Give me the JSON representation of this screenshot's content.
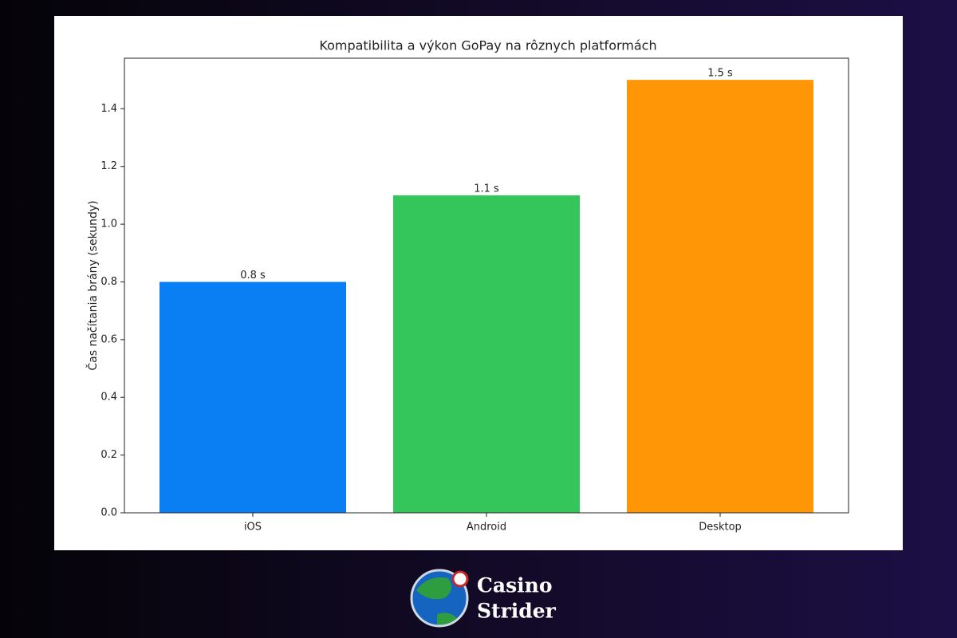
{
  "chart_data": {
    "type": "bar",
    "title": "Kompatibilita a výkon GoPay na rôznych platformách",
    "y_label": "Čas načítania brány (sekundy)",
    "categories": [
      "iOS",
      "Android",
      "Desktop"
    ],
    "values": [
      0.8,
      1.1,
      1.5
    ],
    "value_labels": [
      "0.8 s",
      "1.1 s",
      "1.5 s"
    ],
    "colors": [
      "#0a7ef3",
      "#34c65a",
      "#ff9606"
    ],
    "ylim": [
      0,
      1.575
    ],
    "yticks": [
      {
        "value": 0,
        "label": "0.0"
      },
      0.2,
      0.4,
      0.6,
      0.8,
      {
        "value": 1,
        "label": "1.0"
      },
      1.2,
      1.4
    ]
  },
  "brand": {
    "line1": "Casino",
    "line2": "Strider"
  }
}
